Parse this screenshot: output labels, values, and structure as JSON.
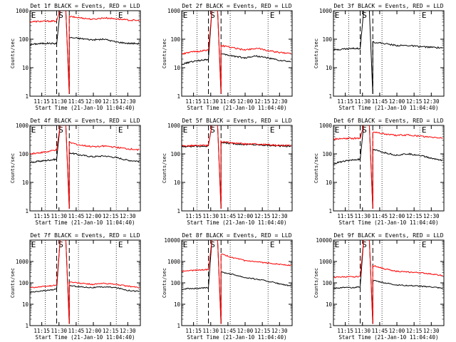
{
  "chart_data": [
    {
      "type": "line",
      "title": "Det 1f BLACK = Events, RED = LLD",
      "xlabel": "Start Time (21-Jan-10 11:04:40)",
      "ylabel": "Counts/sec",
      "x_ticks": [
        "11:15",
        "11:30",
        "11:45",
        "12:00",
        "12:15",
        "12:30"
      ],
      "y_ticks": [
        "1",
        "10",
        "100",
        "1000"
      ],
      "y_scale": "log",
      "ylim": [
        1,
        1000
      ],
      "xlim": [
        "11:04:40",
        "12:41"
      ],
      "markers": [
        "E",
        "S",
        "E"
      ],
      "marker_times": {
        "dotted": [
          "11:18",
          "11:47",
          "12:20"
        ],
        "dashed": [
          "11:28",
          "11:39"
        ]
      },
      "series": [
        {
          "name": "Events",
          "color": "#000000",
          "pre": [
            65,
            70,
            72,
            70
          ],
          "post": [
            115,
            105,
            95,
            100,
            80,
            72,
            70
          ]
        },
        {
          "name": "LLD",
          "color": "#ff0000",
          "pre": [
            410,
            420,
            430,
            430
          ],
          "post": [
            620,
            560,
            500,
            560,
            520,
            470,
            450
          ]
        }
      ]
    },
    {
      "type": "line",
      "title": "Det 2f BLACK = Events, RED = LLD",
      "xlabel": "Start Time (21-Jan-10 11:04:40)",
      "ylabel": "Counts/sec",
      "x_ticks": [
        "11:15",
        "11:30",
        "11:45",
        "12:00",
        "12:15",
        "12:30"
      ],
      "y_ticks": [
        "1",
        "10",
        "100",
        "1000"
      ],
      "y_scale": "log",
      "ylim": [
        1,
        1000
      ],
      "xlim": [
        "11:04:40",
        "12:41"
      ],
      "markers": [
        "E",
        "S",
        "E"
      ],
      "marker_times": {
        "dotted": [
          "11:18",
          "11:47",
          "12:20"
        ],
        "dashed": [
          "11:28",
          "11:39"
        ]
      },
      "series": [
        {
          "name": "Events",
          "color": "#000000",
          "pre": [
            13,
            16,
            18,
            20
          ],
          "post": [
            30,
            26,
            22,
            26,
            22,
            18,
            16
          ]
        },
        {
          "name": "LLD",
          "color": "#ff0000",
          "pre": [
            30,
            35,
            38,
            42
          ],
          "post": [
            60,
            50,
            42,
            48,
            40,
            34,
            32
          ]
        }
      ]
    },
    {
      "type": "line",
      "title": "Det 3f BLACK = Events, RED = LLD",
      "xlabel": "Start Time (21-Jan-10 11:04:40)",
      "ylabel": "Counts/sec",
      "x_ticks": [
        "11:15",
        "11:30",
        "11:45",
        "12:00",
        "12:15",
        "12:30"
      ],
      "y_ticks": [
        "1",
        "10",
        "100",
        "1000"
      ],
      "y_scale": "log",
      "ylim": [
        1,
        1000
      ],
      "xlim": [
        "11:04:40",
        "12:41"
      ],
      "markers": [
        "E",
        "S",
        "E"
      ],
      "marker_times": {
        "dotted": [
          "11:18",
          "11:47",
          "12:20"
        ],
        "dashed": [
          "11:28",
          "11:39"
        ]
      },
      "series": [
        {
          "name": "Events",
          "color": "#000000",
          "pre": [
            42,
            45,
            47,
            48
          ],
          "post": [
            80,
            70,
            60,
            60,
            55,
            52,
            50
          ]
        }
      ]
    },
    {
      "type": "line",
      "title": "Det 4f BLACK = Events, RED = LLD",
      "xlabel": "Start Time (21-Jan-10 11:04:40)",
      "ylabel": "Counts/sec",
      "x_ticks": [
        "11:15",
        "11:30",
        "11:45",
        "12:00",
        "12:15",
        "12:30"
      ],
      "y_ticks": [
        "1",
        "10",
        "100",
        "1000"
      ],
      "y_scale": "log",
      "ylim": [
        1,
        1000
      ],
      "xlim": [
        "11:04:40",
        "12:41"
      ],
      "markers": [
        "E",
        "S",
        "E"
      ],
      "marker_times": {
        "dotted": [
          "11:18",
          "11:47",
          "12:20"
        ],
        "dashed": [
          "11:28",
          "11:39"
        ]
      },
      "series": [
        {
          "name": "Events",
          "color": "#000000",
          "pre": [
            50,
            55,
            60,
            65
          ],
          "post": [
            110,
            90,
            80,
            85,
            75,
            60,
            55
          ]
        },
        {
          "name": "LLD",
          "color": "#ff0000",
          "pre": [
            100,
            110,
            120,
            140
          ],
          "post": [
            250,
            200,
            180,
            190,
            170,
            150,
            140
          ]
        }
      ]
    },
    {
      "type": "line",
      "title": "Det 5f BLACK = Events, RED = LLD",
      "xlabel": "Start Time (21-Jan-10 11:04:40)",
      "ylabel": "Counts/sec",
      "x_ticks": [
        "11:15",
        "11:30",
        "11:45",
        "12:00",
        "12:15",
        "12:30"
      ],
      "y_ticks": [
        "1",
        "10",
        "100",
        "1000"
      ],
      "y_scale": "log",
      "ylim": [
        1,
        1000
      ],
      "xlim": [
        "11:04:40",
        "12:41"
      ],
      "markers": [
        "E",
        "S",
        "E"
      ],
      "marker_times": {
        "dotted": [
          "11:18",
          "11:47",
          "12:20"
        ],
        "dashed": [
          "11:28",
          "11:39"
        ]
      },
      "series": [
        {
          "name": "Events",
          "color": "#000000",
          "pre": [
            180,
            185,
            185,
            190
          ],
          "post": [
            250,
            230,
            215,
            210,
            200,
            190,
            185
          ]
        },
        {
          "name": "LLD",
          "color": "#ff0000",
          "pre": [
            190,
            195,
            195,
            200
          ],
          "post": [
            270,
            240,
            225,
            220,
            210,
            200,
            195
          ]
        }
      ]
    },
    {
      "type": "line",
      "title": "Det 6f BLACK = Events, RED = LLD",
      "xlabel": "Start Time (21-Jan-10 11:04:40)",
      "ylabel": "Counts/sec",
      "x_ticks": [
        "11:15",
        "11:30",
        "11:45",
        "12:00",
        "12:15",
        "12:30"
      ],
      "y_ticks": [
        "1",
        "10",
        "100",
        "1000"
      ],
      "y_scale": "log",
      "ylim": [
        1,
        1000
      ],
      "xlim": [
        "11:04:40",
        "12:41"
      ],
      "markers": [
        "E",
        "S",
        "E"
      ],
      "marker_times": {
        "dotted": [
          "11:18",
          "11:47",
          "12:20"
        ],
        "dashed": [
          "11:28",
          "11:39"
        ]
      },
      "series": [
        {
          "name": "Events",
          "color": "#000000",
          "pre": [
            45,
            55,
            60,
            65
          ],
          "post": [
            140,
            110,
            90,
            100,
            90,
            70,
            60
          ]
        },
        {
          "name": "LLD",
          "color": "#ff0000",
          "pre": [
            330,
            340,
            350,
            360
          ],
          "post": [
            600,
            500,
            450,
            460,
            420,
            380,
            360
          ]
        }
      ]
    },
    {
      "type": "line",
      "title": "Det 7f BLACK = Events, RED = LLD",
      "xlabel": "Start Time (21-Jan-10 11:04:40)",
      "ylabel": "Counts/sec",
      "x_ticks": [
        "11:15",
        "11:30",
        "11:45",
        "12:00",
        "12:15",
        "12:30"
      ],
      "y_ticks": [
        "1",
        "10",
        "100",
        "1000"
      ],
      "y_scale": "log",
      "ylim": [
        1,
        10000
      ],
      "xlim": [
        "11:04:40",
        "12:41"
      ],
      "markers": [
        "E",
        "S",
        "E"
      ],
      "marker_times": {
        "dotted": [
          "11:18",
          "11:47",
          "12:20"
        ],
        "dashed": [
          "11:28",
          "11:39"
        ]
      },
      "series": [
        {
          "name": "Events",
          "color": "#000000",
          "pre": [
            35,
            40,
            45,
            50
          ],
          "post": [
            75,
            65,
            60,
            65,
            60,
            45,
            40
          ]
        },
        {
          "name": "LLD",
          "color": "#ff0000",
          "pre": [
            60,
            65,
            70,
            80
          ],
          "post": [
            110,
            95,
            85,
            95,
            85,
            70,
            60
          ]
        }
      ]
    },
    {
      "type": "line",
      "title": "Det 8f BLACK = Events, RED = LLD",
      "xlabel": "Start Time (21-Jan-10 11:04:40)",
      "ylabel": "Counts/sec",
      "x_ticks": [
        "11:15",
        "11:30",
        "11:45",
        "12:00",
        "12:15",
        "12:30"
      ],
      "y_ticks": [
        "1",
        "10",
        "100",
        "1000",
        "10000"
      ],
      "y_scale": "log",
      "ylim": [
        1,
        10000
      ],
      "xlim": [
        "11:04:40",
        "12:41"
      ],
      "markers": [
        "E",
        "S",
        "E"
      ],
      "marker_times": {
        "dotted": [
          "11:18",
          "11:47",
          "12:20"
        ],
        "dashed": [
          "11:28",
          "11:39"
        ]
      },
      "series": [
        {
          "name": "Events",
          "color": "#000000",
          "pre": [
            50,
            55,
            55,
            60
          ],
          "post": [
            320,
            250,
            180,
            150,
            120,
            90,
            70
          ]
        },
        {
          "name": "LLD",
          "color": "#ff0000",
          "pre": [
            350,
            380,
            400,
            420
          ],
          "post": [
            2200,
            1500,
            1100,
            950,
            850,
            750,
            650
          ]
        }
      ]
    },
    {
      "type": "line",
      "title": "Det 9f BLACK = Events, RED = LLD",
      "xlabel": "Start Time (21-Jan-10 11:04:40)",
      "ylabel": "Counts/sec",
      "x_ticks": [
        "11:15",
        "11:30",
        "11:45",
        "12:00",
        "12:15",
        "12:30"
      ],
      "y_ticks": [
        "1",
        "10",
        "100",
        "1000",
        "10000"
      ],
      "y_scale": "log",
      "ylim": [
        1,
        10000
      ],
      "xlim": [
        "11:04:40",
        "12:41"
      ],
      "markers": [
        "E",
        "S",
        "E"
      ],
      "marker_times": {
        "dotted": [
          "11:18",
          "11:47",
          "12:20"
        ],
        "dashed": [
          "11:28",
          "11:39"
        ]
      },
      "series": [
        {
          "name": "Events",
          "color": "#000000",
          "pre": [
            55,
            60,
            60,
            65
          ],
          "post": [
            130,
            100,
            80,
            75,
            70,
            65,
            55
          ]
        },
        {
          "name": "LLD",
          "color": "#ff0000",
          "pre": [
            180,
            190,
            190,
            200
          ],
          "post": [
            650,
            450,
            350,
            320,
            300,
            260,
            220
          ]
        }
      ]
    }
  ]
}
